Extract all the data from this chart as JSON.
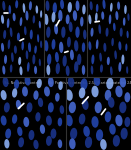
{
  "figure_bg": "#000000",
  "panel_bg": "#000000",
  "caption_fontsize": 2.5,
  "caption_color": "#bbbbbb",
  "divider_color": "#444444",
  "captions": [
    "9a. Negative control",
    "9b. Positive control",
    "9c. 2.5μM artesunate for 24hrs",
    "9d. 2.5μM artesunate for 72 hrs",
    "9e. 2.5μM artesunate for 120 hrs"
  ],
  "panels": [
    {
      "nuclei": [
        [
          0.08,
          0.93,
          0.07,
          0.13,
          10
        ],
        [
          0.22,
          0.88,
          0.06,
          0.12,
          5
        ],
        [
          0.38,
          0.95,
          0.07,
          0.11,
          -5
        ],
        [
          0.55,
          0.9,
          0.06,
          0.13,
          8
        ],
        [
          0.7,
          0.93,
          0.07,
          0.12,
          -8
        ],
        [
          0.85,
          0.88,
          0.06,
          0.11,
          5
        ],
        [
          0.95,
          0.82,
          0.05,
          0.1,
          -3
        ],
        [
          0.05,
          0.75,
          0.07,
          0.12,
          12
        ],
        [
          0.18,
          0.7,
          0.06,
          0.13,
          -6
        ],
        [
          0.32,
          0.78,
          0.07,
          0.11,
          8
        ],
        [
          0.48,
          0.72,
          0.06,
          0.12,
          -10
        ],
        [
          0.62,
          0.8,
          0.07,
          0.13,
          5
        ],
        [
          0.78,
          0.75,
          0.06,
          0.11,
          -5
        ],
        [
          0.92,
          0.68,
          0.05,
          0.1,
          7
        ],
        [
          0.1,
          0.55,
          0.07,
          0.12,
          -8
        ],
        [
          0.25,
          0.58,
          0.06,
          0.13,
          10
        ],
        [
          0.42,
          0.52,
          0.07,
          0.11,
          -5
        ],
        [
          0.58,
          0.6,
          0.06,
          0.12,
          8
        ],
        [
          0.72,
          0.55,
          0.07,
          0.13,
          -3
        ],
        [
          0.88,
          0.5,
          0.05,
          0.11,
          5
        ],
        [
          0.05,
          0.38,
          0.07,
          0.12,
          10
        ],
        [
          0.2,
          0.42,
          0.06,
          0.13,
          -8
        ],
        [
          0.35,
          0.35,
          0.07,
          0.11,
          5
        ],
        [
          0.52,
          0.4,
          0.06,
          0.12,
          -5
        ],
        [
          0.68,
          0.38,
          0.07,
          0.13,
          8
        ],
        [
          0.82,
          0.35,
          0.06,
          0.11,
          -10
        ],
        [
          0.95,
          0.42,
          0.05,
          0.1,
          3
        ],
        [
          0.12,
          0.22,
          0.07,
          0.12,
          -5
        ],
        [
          0.28,
          0.25,
          0.06,
          0.13,
          8
        ],
        [
          0.45,
          0.2,
          0.07,
          0.11,
          -8
        ],
        [
          0.62,
          0.28,
          0.06,
          0.12,
          5
        ],
        [
          0.78,
          0.22,
          0.07,
          0.13,
          -3
        ],
        [
          0.92,
          0.18,
          0.05,
          0.1,
          7
        ],
        [
          0.08,
          0.08,
          0.07,
          0.12,
          10
        ],
        [
          0.25,
          0.1,
          0.06,
          0.11,
          -5
        ],
        [
          0.48,
          0.07,
          0.07,
          0.12,
          8
        ],
        [
          0.65,
          0.12,
          0.06,
          0.13,
          -8
        ],
        [
          0.82,
          0.08,
          0.07,
          0.11,
          5
        ]
      ],
      "arrows": [
        [
          0.13,
          0.83,
          0.01,
          0.09,
          90
        ],
        [
          0.5,
          0.48,
          0.01,
          0.09,
          75
        ]
      ]
    },
    {
      "nuclei": [
        [
          0.08,
          0.93,
          0.09,
          0.14,
          8
        ],
        [
          0.25,
          0.9,
          0.1,
          0.15,
          -5
        ],
        [
          0.42,
          0.95,
          0.09,
          0.13,
          10
        ],
        [
          0.6,
          0.91,
          0.1,
          0.14,
          -8
        ],
        [
          0.78,
          0.93,
          0.09,
          0.14,
          5
        ],
        [
          0.93,
          0.88,
          0.08,
          0.13,
          -3
        ],
        [
          0.05,
          0.75,
          0.1,
          0.15,
          12
        ],
        [
          0.22,
          0.78,
          0.09,
          0.14,
          -8
        ],
        [
          0.38,
          0.8,
          0.1,
          0.15,
          5
        ],
        [
          0.55,
          0.75,
          0.09,
          0.13,
          -5
        ],
        [
          0.72,
          0.8,
          0.1,
          0.14,
          8
        ],
        [
          0.88,
          0.72,
          0.08,
          0.13,
          -3
        ],
        [
          0.1,
          0.58,
          0.1,
          0.15,
          -8
        ],
        [
          0.28,
          0.62,
          0.09,
          0.14,
          10
        ],
        [
          0.45,
          0.58,
          0.1,
          0.15,
          -5
        ],
        [
          0.62,
          0.65,
          0.09,
          0.14,
          8
        ],
        [
          0.78,
          0.58,
          0.1,
          0.15,
          -3
        ],
        [
          0.95,
          0.55,
          0.08,
          0.13,
          5
        ],
        [
          0.05,
          0.4,
          0.1,
          0.15,
          10
        ],
        [
          0.22,
          0.42,
          0.09,
          0.14,
          -8
        ],
        [
          0.4,
          0.38,
          0.1,
          0.15,
          5
        ],
        [
          0.58,
          0.45,
          0.09,
          0.14,
          -5
        ],
        [
          0.75,
          0.4,
          0.1,
          0.15,
          8
        ],
        [
          0.92,
          0.38,
          0.08,
          0.13,
          -3
        ],
        [
          0.12,
          0.22,
          0.1,
          0.15,
          -8
        ],
        [
          0.3,
          0.25,
          0.09,
          0.14,
          10
        ],
        [
          0.48,
          0.2,
          0.1,
          0.15,
          -5
        ],
        [
          0.65,
          0.28,
          0.09,
          0.14,
          8
        ],
        [
          0.82,
          0.22,
          0.1,
          0.15,
          -3
        ],
        [
          0.1,
          0.08,
          0.09,
          0.14,
          5
        ],
        [
          0.32,
          0.1,
          0.1,
          0.15,
          -8
        ],
        [
          0.55,
          0.07,
          0.09,
          0.14,
          8
        ],
        [
          0.75,
          0.12,
          0.1,
          0.15,
          -5
        ],
        [
          0.92,
          0.08,
          0.08,
          0.13,
          3
        ]
      ],
      "arrows": [
        [
          0.32,
          0.7,
          0.01,
          0.1,
          45
        ],
        [
          0.52,
          0.32,
          0.01,
          0.08,
          80
        ]
      ]
    },
    {
      "nuclei": [
        [
          0.08,
          0.93,
          0.07,
          0.12,
          8
        ],
        [
          0.22,
          0.9,
          0.06,
          0.11,
          -5
        ],
        [
          0.38,
          0.95,
          0.07,
          0.13,
          10
        ],
        [
          0.55,
          0.91,
          0.06,
          0.12,
          -8
        ],
        [
          0.72,
          0.93,
          0.07,
          0.11,
          5
        ],
        [
          0.88,
          0.88,
          0.06,
          0.12,
          -3
        ],
        [
          0.05,
          0.75,
          0.07,
          0.13,
          12
        ],
        [
          0.2,
          0.78,
          0.06,
          0.12,
          -8
        ],
        [
          0.35,
          0.8,
          0.07,
          0.11,
          5
        ],
        [
          0.52,
          0.75,
          0.06,
          0.13,
          -5
        ],
        [
          0.68,
          0.8,
          0.07,
          0.12,
          8
        ],
        [
          0.85,
          0.72,
          0.06,
          0.11,
          -3
        ],
        [
          0.95,
          0.78,
          0.05,
          0.1,
          5
        ],
        [
          0.1,
          0.58,
          0.07,
          0.12,
          -8
        ],
        [
          0.28,
          0.62,
          0.06,
          0.13,
          10
        ],
        [
          0.45,
          0.58,
          0.07,
          0.12,
          -5
        ],
        [
          0.62,
          0.65,
          0.06,
          0.11,
          8
        ],
        [
          0.78,
          0.58,
          0.07,
          0.12,
          -3
        ],
        [
          0.93,
          0.55,
          0.05,
          0.1,
          5
        ],
        [
          0.05,
          0.4,
          0.07,
          0.12,
          10
        ],
        [
          0.22,
          0.42,
          0.06,
          0.13,
          -8
        ],
        [
          0.4,
          0.38,
          0.07,
          0.12,
          5
        ],
        [
          0.58,
          0.45,
          0.06,
          0.11,
          -5
        ],
        [
          0.75,
          0.4,
          0.07,
          0.12,
          8
        ],
        [
          0.9,
          0.38,
          0.05,
          0.1,
          -3
        ],
        [
          0.12,
          0.22,
          0.07,
          0.13,
          -8
        ],
        [
          0.3,
          0.25,
          0.06,
          0.12,
          10
        ],
        [
          0.48,
          0.2,
          0.07,
          0.11,
          -5
        ],
        [
          0.65,
          0.28,
          0.06,
          0.12,
          8
        ],
        [
          0.82,
          0.22,
          0.07,
          0.13,
          -3
        ],
        [
          0.1,
          0.08,
          0.06,
          0.12,
          5
        ],
        [
          0.32,
          0.1,
          0.07,
          0.11,
          -8
        ],
        [
          0.55,
          0.07,
          0.06,
          0.12,
          8
        ],
        [
          0.75,
          0.12,
          0.07,
          0.13,
          -5
        ],
        [
          0.92,
          0.08,
          0.05,
          0.1,
          3
        ]
      ],
      "arrows": [
        [
          0.22,
          0.72,
          0.01,
          0.1,
          85
        ]
      ]
    },
    {
      "nuclei": [
        [
          0.08,
          0.93,
          0.09,
          0.14,
          8
        ],
        [
          0.25,
          0.9,
          0.08,
          0.13,
          -5
        ],
        [
          0.42,
          0.95,
          0.09,
          0.14,
          10
        ],
        [
          0.6,
          0.91,
          0.08,
          0.13,
          -8
        ],
        [
          0.78,
          0.93,
          0.09,
          0.14,
          5
        ],
        [
          0.93,
          0.88,
          0.07,
          0.12,
          -3
        ],
        [
          0.05,
          0.75,
          0.09,
          0.14,
          12
        ],
        [
          0.22,
          0.78,
          0.08,
          0.13,
          -8
        ],
        [
          0.38,
          0.8,
          0.09,
          0.14,
          5
        ],
        [
          0.55,
          0.75,
          0.08,
          0.13,
          -5
        ],
        [
          0.72,
          0.8,
          0.09,
          0.14,
          8
        ],
        [
          0.88,
          0.72,
          0.07,
          0.12,
          -3
        ],
        [
          0.1,
          0.58,
          0.09,
          0.14,
          -8
        ],
        [
          0.28,
          0.62,
          0.08,
          0.13,
          10
        ],
        [
          0.45,
          0.58,
          0.09,
          0.14,
          -5
        ],
        [
          0.62,
          0.65,
          0.08,
          0.13,
          8
        ],
        [
          0.78,
          0.58,
          0.09,
          0.14,
          -3
        ],
        [
          0.95,
          0.55,
          0.07,
          0.12,
          5
        ],
        [
          0.05,
          0.4,
          0.09,
          0.14,
          10
        ],
        [
          0.22,
          0.42,
          0.08,
          0.13,
          -8
        ],
        [
          0.4,
          0.38,
          0.09,
          0.14,
          5
        ],
        [
          0.58,
          0.45,
          0.08,
          0.13,
          -5
        ],
        [
          0.75,
          0.4,
          0.09,
          0.14,
          8
        ],
        [
          0.92,
          0.38,
          0.07,
          0.12,
          -3
        ],
        [
          0.12,
          0.22,
          0.09,
          0.14,
          -8
        ],
        [
          0.3,
          0.25,
          0.08,
          0.13,
          10
        ],
        [
          0.48,
          0.2,
          0.09,
          0.14,
          -5
        ],
        [
          0.65,
          0.28,
          0.08,
          0.13,
          8
        ],
        [
          0.82,
          0.22,
          0.09,
          0.14,
          -3
        ],
        [
          0.1,
          0.08,
          0.08,
          0.13,
          5
        ],
        [
          0.32,
          0.1,
          0.09,
          0.14,
          -8
        ],
        [
          0.55,
          0.07,
          0.08,
          0.13,
          8
        ],
        [
          0.75,
          0.12,
          0.09,
          0.14,
          -5
        ],
        [
          0.92,
          0.08,
          0.07,
          0.12,
          3
        ]
      ],
      "arrows": [
        [
          0.32,
          0.6,
          0.01,
          0.11,
          50
        ]
      ]
    },
    {
      "nuclei": [
        [
          0.08,
          0.93,
          0.1,
          0.15,
          8
        ],
        [
          0.28,
          0.9,
          0.11,
          0.16,
          -5
        ],
        [
          0.48,
          0.95,
          0.1,
          0.15,
          10
        ],
        [
          0.68,
          0.91,
          0.11,
          0.16,
          -8
        ],
        [
          0.88,
          0.93,
          0.1,
          0.15,
          5
        ],
        [
          0.05,
          0.75,
          0.11,
          0.16,
          12
        ],
        [
          0.25,
          0.78,
          0.1,
          0.15,
          -8
        ],
        [
          0.45,
          0.8,
          0.11,
          0.16,
          5
        ],
        [
          0.65,
          0.75,
          0.1,
          0.15,
          -5
        ],
        [
          0.82,
          0.8,
          0.11,
          0.16,
          8
        ],
        [
          0.95,
          0.72,
          0.09,
          0.14,
          -3
        ],
        [
          0.1,
          0.58,
          0.11,
          0.16,
          -8
        ],
        [
          0.3,
          0.62,
          0.1,
          0.15,
          10
        ],
        [
          0.5,
          0.58,
          0.11,
          0.16,
          -5
        ],
        [
          0.7,
          0.65,
          0.1,
          0.15,
          8
        ],
        [
          0.88,
          0.58,
          0.11,
          0.16,
          -3
        ],
        [
          0.05,
          0.4,
          0.11,
          0.16,
          10
        ],
        [
          0.25,
          0.42,
          0.1,
          0.15,
          -8
        ],
        [
          0.45,
          0.38,
          0.11,
          0.16,
          5
        ],
        [
          0.65,
          0.45,
          0.1,
          0.15,
          -5
        ],
        [
          0.82,
          0.4,
          0.11,
          0.16,
          8
        ],
        [
          0.95,
          0.38,
          0.09,
          0.14,
          -3
        ],
        [
          0.12,
          0.22,
          0.11,
          0.16,
          -8
        ],
        [
          0.32,
          0.25,
          0.1,
          0.15,
          10
        ],
        [
          0.52,
          0.2,
          0.11,
          0.16,
          -5
        ],
        [
          0.72,
          0.28,
          0.1,
          0.15,
          8
        ],
        [
          0.9,
          0.22,
          0.11,
          0.16,
          -3
        ],
        [
          0.1,
          0.08,
          0.1,
          0.15,
          5
        ],
        [
          0.35,
          0.1,
          0.11,
          0.16,
          -8
        ],
        [
          0.58,
          0.07,
          0.1,
          0.15,
          8
        ],
        [
          0.78,
          0.12,
          0.11,
          0.16,
          -5
        ]
      ],
      "arrows": [
        [
          0.3,
          0.68,
          0.01,
          0.13,
          45
        ],
        [
          0.58,
          0.52,
          0.01,
          0.1,
          40
        ]
      ]
    }
  ]
}
